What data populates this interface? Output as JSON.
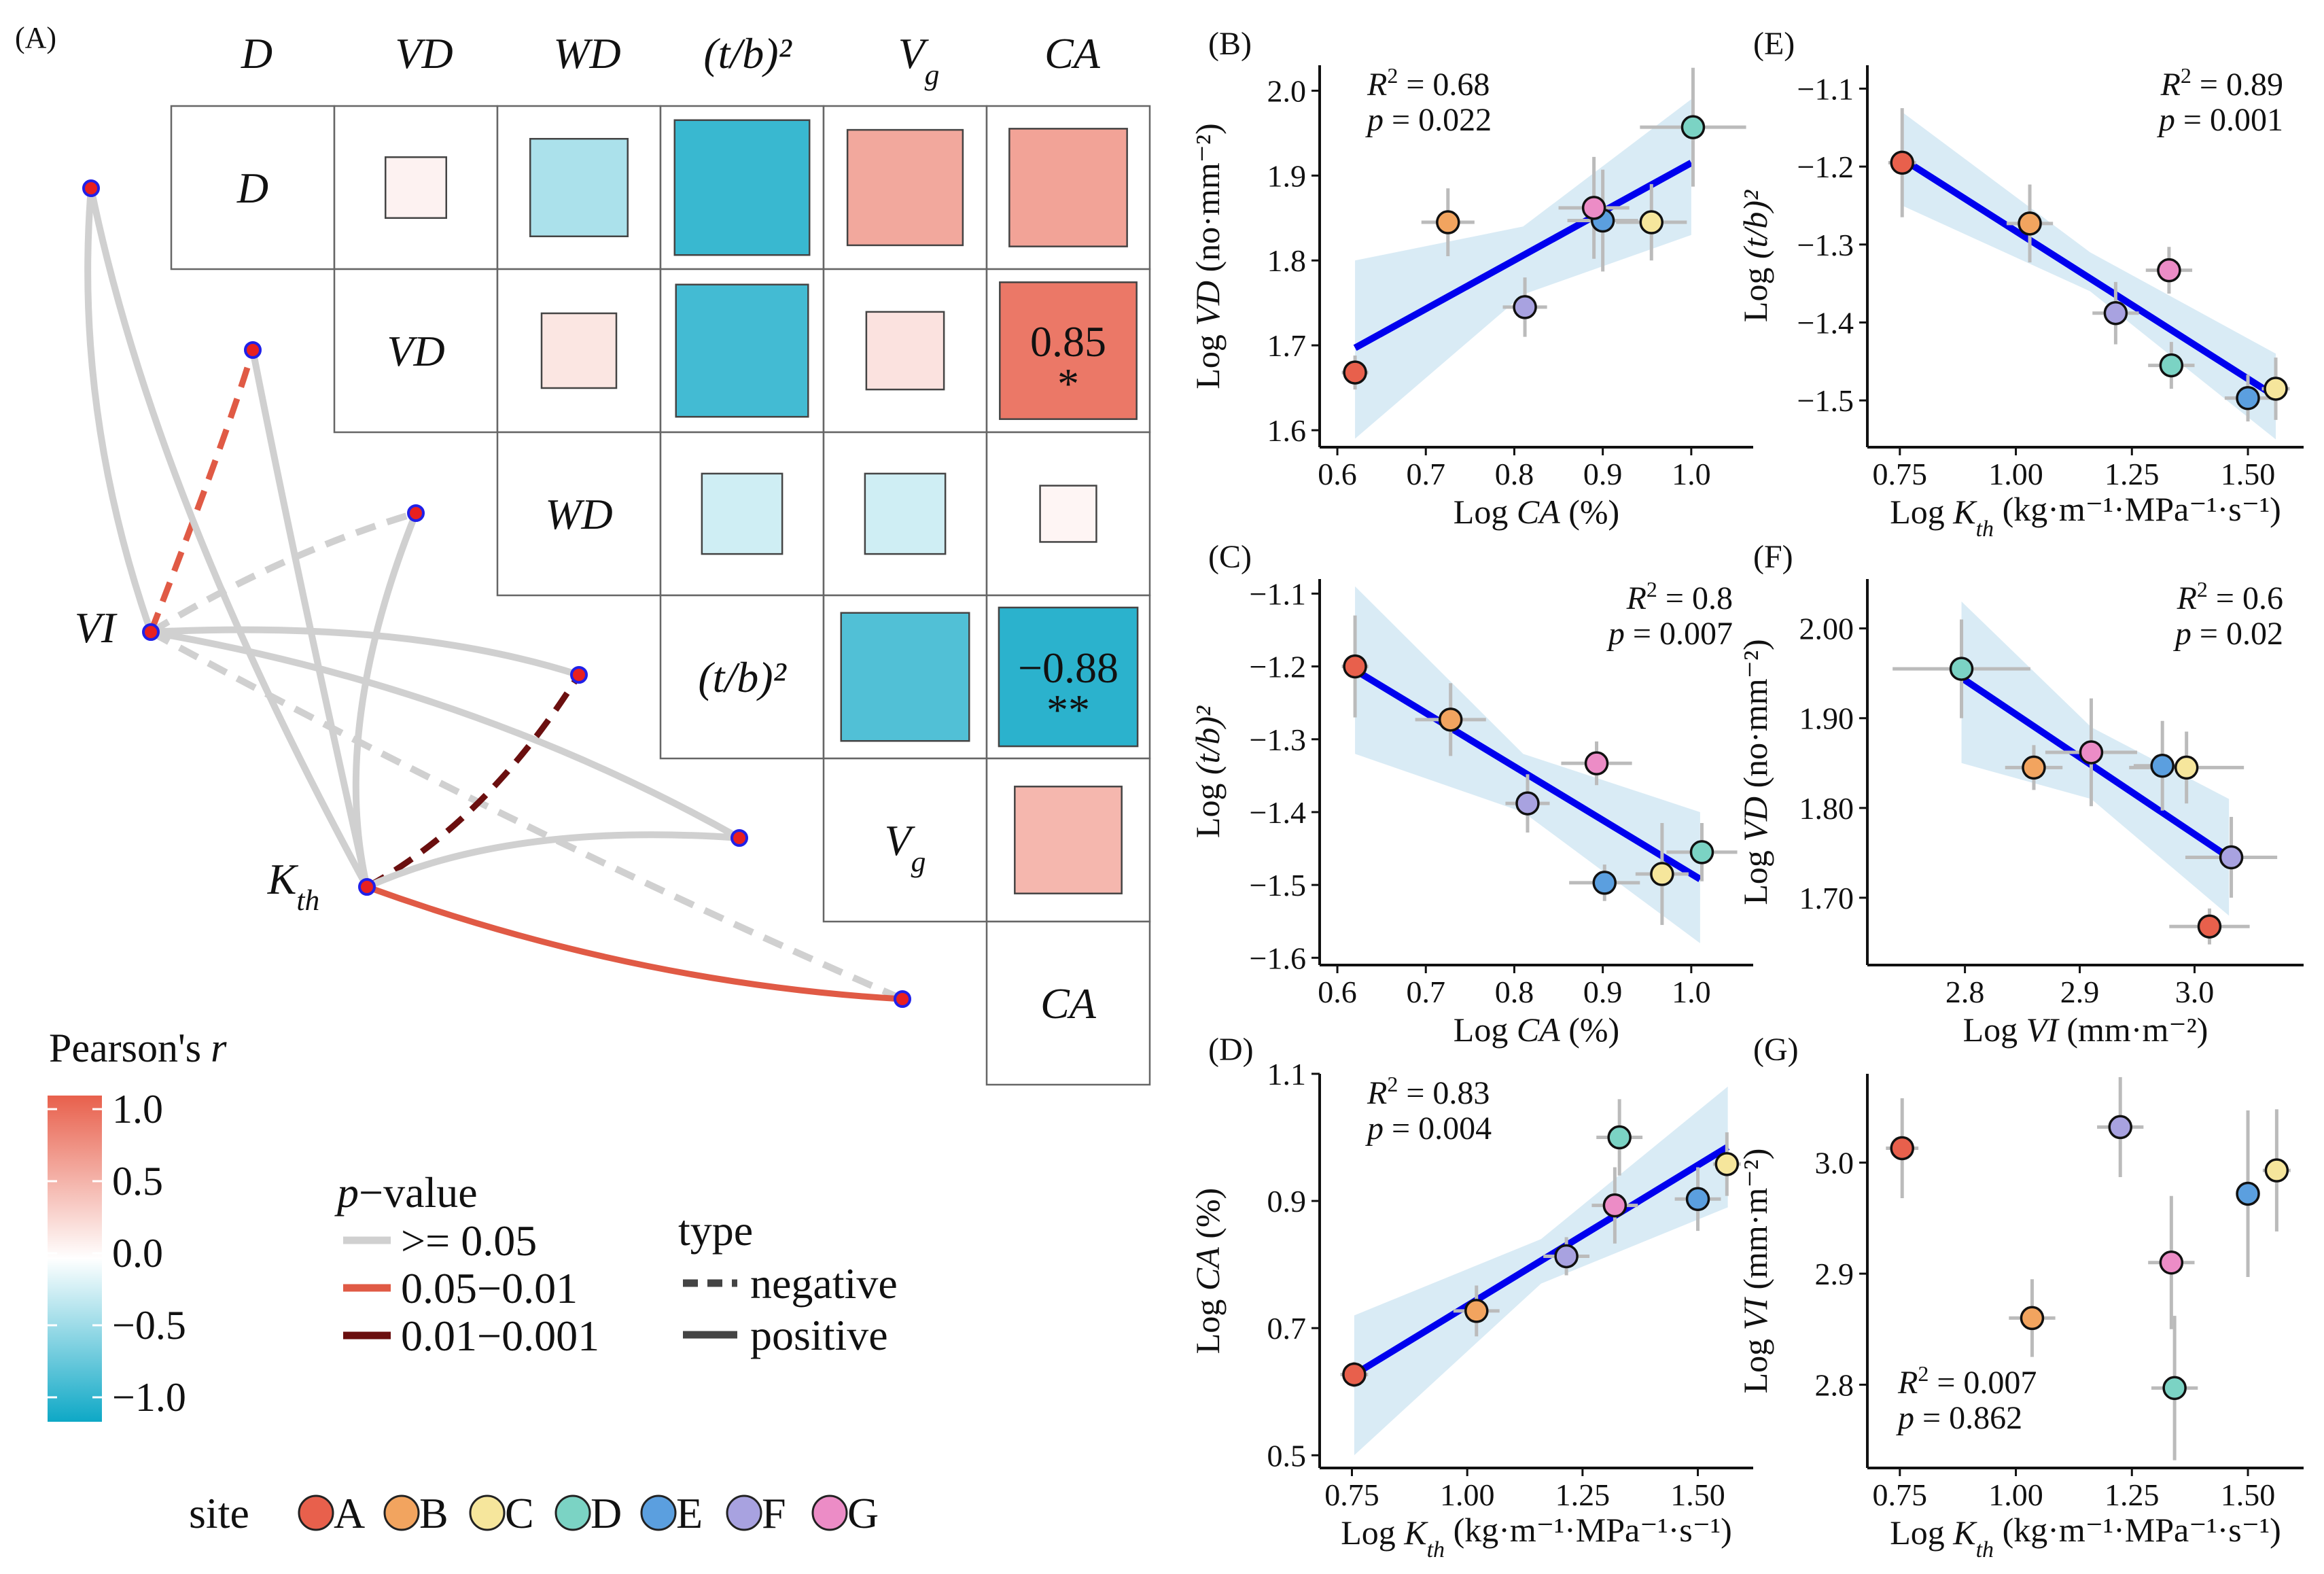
{
  "colors": {
    "pos_strong": "#E8604C",
    "neg_strong": "#0EA8C6",
    "neutral": "#FFFFFF",
    "edge_ns": "#D0D0D0",
    "edge_sig": "#E05A45",
    "edge_vsig": "#6B0F0F",
    "reg_line": "#0000EE",
    "ci_fill": "#BFDDEE",
    "node_fill": "#E82020",
    "node_stroke": "#2020E8"
  },
  "sites": [
    {
      "label": "A",
      "color": "#E8604C"
    },
    {
      "label": "B",
      "color": "#F2A45F"
    },
    {
      "label": "C",
      "color": "#F6E69C"
    },
    {
      "label": "D",
      "color": "#7BD3C4"
    },
    {
      "label": "E",
      "color": "#5B9FDF"
    },
    {
      "label": "F",
      "color": "#A8A2E0"
    },
    {
      "label": "G",
      "color": "#EC8CC6"
    }
  ],
  "panel_a": {
    "label": "(A)",
    "variables": [
      {
        "main": "D",
        "sub": ""
      },
      {
        "main": "VD",
        "sub": ""
      },
      {
        "main": "WD",
        "sub": ""
      },
      {
        "main": "(t/b)²",
        "sub": ""
      },
      {
        "main": "V",
        "sub": "g"
      },
      {
        "main": "CA",
        "sub": ""
      }
    ],
    "cells": [
      {
        "row": 0,
        "col": 1,
        "r": 0.08
      },
      {
        "row": 0,
        "col": 2,
        "r": -0.35
      },
      {
        "row": 0,
        "col": 3,
        "r": -0.82
      },
      {
        "row": 0,
        "col": 4,
        "r": 0.55
      },
      {
        "row": 0,
        "col": 5,
        "r": 0.58
      },
      {
        "row": 1,
        "col": 2,
        "r": 0.16
      },
      {
        "row": 1,
        "col": 3,
        "r": -0.78
      },
      {
        "row": 1,
        "col": 4,
        "r": 0.18
      },
      {
        "row": 1,
        "col": 5,
        "r": 0.85,
        "text": "0.85",
        "stars": "*"
      },
      {
        "row": 2,
        "col": 3,
        "r": -0.2
      },
      {
        "row": 2,
        "col": 4,
        "r": -0.2
      },
      {
        "row": 2,
        "col": 5,
        "r": 0.06
      },
      {
        "row": 3,
        "col": 4,
        "r": -0.72
      },
      {
        "row": 3,
        "col": 5,
        "r": -0.88,
        "text": "−0.88",
        "stars": "**"
      },
      {
        "row": 4,
        "col": 5,
        "r": 0.45
      }
    ],
    "network_nodes": {
      "vi": {
        "main": "VI",
        "sub": ""
      },
      "kth": {
        "main": "K",
        "sub": "th"
      }
    },
    "edges": [
      {
        "from": "vi",
        "to": 0,
        "p": "ns",
        "type": "positive"
      },
      {
        "from": "vi",
        "to": 1,
        "p": "sig",
        "type": "negative"
      },
      {
        "from": "vi",
        "to": 2,
        "p": "ns",
        "type": "negative"
      },
      {
        "from": "vi",
        "to": 3,
        "p": "ns",
        "type": "positive"
      },
      {
        "from": "vi",
        "to": 4,
        "p": "ns",
        "type": "positive"
      },
      {
        "from": "vi",
        "to": 5,
        "p": "ns",
        "type": "negative"
      },
      {
        "from": "kth",
        "to": 0,
        "p": "ns",
        "type": "positive"
      },
      {
        "from": "kth",
        "to": 1,
        "p": "ns",
        "type": "positive"
      },
      {
        "from": "kth",
        "to": 2,
        "p": "ns",
        "type": "positive"
      },
      {
        "from": "kth",
        "to": 3,
        "p": "vsig",
        "type": "negative"
      },
      {
        "from": "kth",
        "to": 4,
        "p": "ns",
        "type": "positive"
      },
      {
        "from": "kth",
        "to": 5,
        "p": "sig",
        "type": "positive"
      }
    ],
    "legend": {
      "pearson_title": "Pearson's",
      "pearson_r": "r",
      "colorbar_ticks": [
        "1.0",
        "0.5",
        "0.0",
        "−0.5",
        "−1.0"
      ],
      "p_title_p": "p",
      "p_title_rest": "−value",
      "p_items": [
        ">= 0.05",
        "0.05−0.01",
        "0.01−0.001"
      ],
      "type_title": "type",
      "type_items": [
        "negative",
        "positive"
      ],
      "site_title": "site"
    }
  },
  "chart_data": [
    {
      "panel": "(B)",
      "type": "scatter",
      "xlabel_pre": "Log ",
      "xlabel_var": "CA",
      "xlabel_sub": "",
      "xlabel_post": " (%)",
      "ylabel_pre": "Log ",
      "ylabel_var": "VD",
      "ylabel_sub": "",
      "ylabel_post": " (no·mm⁻²)",
      "xlim": [
        0.58,
        1.07
      ],
      "ylim": [
        1.58,
        2.03
      ],
      "xticks": [
        0.6,
        0.7,
        0.8,
        0.9,
        1.0
      ],
      "xtick_labels": [
        "0.6",
        "0.7",
        "0.8",
        "0.9",
        "1.0"
      ],
      "yticks": [
        1.6,
        1.7,
        1.8,
        1.9,
        2.0
      ],
      "ytick_labels": [
        "1.6",
        "1.7",
        "1.8",
        "1.9",
        "2.0"
      ],
      "stats": {
        "r2": "0.68",
        "p": "0.022",
        "position": "top-left"
      },
      "fit": {
        "x": [
          0.62,
          1.0
        ],
        "y": [
          1.697,
          1.915
        ]
      },
      "ci": {
        "x": [
          0.62,
          0.81,
          1.0
        ],
        "lo": [
          1.59,
          1.76,
          1.83
        ],
        "hi": [
          1.8,
          1.84,
          1.99
        ]
      },
      "points": [
        {
          "site": "A",
          "x": 0.62,
          "y": 1.668,
          "ex": 0.015,
          "ey": 0.02
        },
        {
          "site": "B",
          "x": 0.725,
          "y": 1.845,
          "ex": 0.03,
          "ey": 0.04
        },
        {
          "site": "C",
          "x": 0.955,
          "y": 1.845,
          "ex": 0.04,
          "ey": 0.045
        },
        {
          "site": "D",
          "x": 1.002,
          "y": 1.957,
          "ex": 0.06,
          "ey": 0.07
        },
        {
          "site": "E",
          "x": 0.9,
          "y": 1.847,
          "ex": 0.04,
          "ey": 0.06
        },
        {
          "site": "F",
          "x": 0.812,
          "y": 1.745,
          "ex": 0.025,
          "ey": 0.035
        },
        {
          "site": "G",
          "x": 0.89,
          "y": 1.862,
          "ex": 0.04,
          "ey": 0.06
        }
      ]
    },
    {
      "panel": "(C)",
      "type": "scatter",
      "xlabel_pre": "Log ",
      "xlabel_var": "CA",
      "xlabel_sub": "",
      "xlabel_post": " (%)",
      "ylabel_pre": "Log ",
      "ylabel_var": "(t/b)²",
      "ylabel_sub": "",
      "ylabel_post": "",
      "xlim": [
        0.58,
        1.07
      ],
      "ylim": [
        -1.61,
        -1.08
      ],
      "xticks": [
        0.6,
        0.7,
        0.8,
        0.9,
        1.0
      ],
      "xtick_labels": [
        "0.6",
        "0.7",
        "0.8",
        "0.9",
        "1.0"
      ],
      "yticks": [
        -1.6,
        -1.5,
        -1.4,
        -1.3,
        -1.2,
        -1.1
      ],
      "ytick_labels": [
        "−1.6",
        "−1.5",
        "−1.4",
        "−1.3",
        "−1.2",
        "−1.1"
      ],
      "stats": {
        "r2": "0.8",
        "p": "0.007",
        "position": "top-right"
      },
      "fit": {
        "x": [
          0.62,
          1.01
        ],
        "y": [
          -1.205,
          -1.492
        ]
      },
      "ci": {
        "x": [
          0.62,
          0.81,
          1.01
        ],
        "lo": [
          -1.32,
          -1.4,
          -1.58
        ],
        "hi": [
          -1.09,
          -1.32,
          -1.4
        ]
      },
      "points": [
        {
          "site": "A",
          "x": 0.62,
          "y": -1.2,
          "ex": 0.015,
          "ey": 0.07
        },
        {
          "site": "B",
          "x": 0.728,
          "y": -1.273,
          "ex": 0.04,
          "ey": 0.05
        },
        {
          "site": "C",
          "x": 0.967,
          "y": -1.485,
          "ex": 0.03,
          "ey": 0.07
        },
        {
          "site": "D",
          "x": 1.012,
          "y": -1.455,
          "ex": 0.04,
          "ey": 0.04
        },
        {
          "site": "E",
          "x": 0.902,
          "y": -1.497,
          "ex": 0.04,
          "ey": 0.025
        },
        {
          "site": "F",
          "x": 0.815,
          "y": -1.388,
          "ex": 0.025,
          "ey": 0.04
        },
        {
          "site": "G",
          "x": 0.893,
          "y": -1.333,
          "ex": 0.04,
          "ey": 0.03
        }
      ]
    },
    {
      "panel": "(D)",
      "type": "scatter",
      "xlabel_pre": "Log ",
      "xlabel_var": "K",
      "xlabel_sub": "th",
      "xlabel_post": " (kg·m⁻¹·MPa⁻¹·s⁻¹)",
      "ylabel_pre": "Log ",
      "ylabel_var": "CA",
      "ylabel_sub": "",
      "ylabel_post": " (%)",
      "xlim": [
        0.68,
        1.62
      ],
      "ylim": [
        0.48,
        1.1
      ],
      "xticks": [
        0.75,
        1.0,
        1.25,
        1.5
      ],
      "xtick_labels": [
        "0.75",
        "1.00",
        "1.25",
        "1.50"
      ],
      "yticks": [
        0.5,
        0.7,
        0.9,
        1.1
      ],
      "ytick_labels": [
        "0.5",
        "0.7",
        "0.9",
        "1.1"
      ],
      "stats": {
        "r2": "0.83",
        "p": "0.004",
        "position": "top-left"
      },
      "fit": {
        "x": [
          0.755,
          1.565
        ],
        "y": [
          0.627,
          0.985
        ]
      },
      "ci": {
        "x": [
          0.755,
          1.16,
          1.565
        ],
        "lo": [
          0.5,
          0.77,
          0.89
        ],
        "hi": [
          0.72,
          0.84,
          1.08
        ]
      },
      "points": [
        {
          "site": "A",
          "x": 0.755,
          "y": 0.627,
          "ex": 0.03,
          "ey": 0.02
        },
        {
          "site": "B",
          "x": 1.02,
          "y": 0.727,
          "ex": 0.05,
          "ey": 0.04
        },
        {
          "site": "C",
          "x": 1.563,
          "y": 0.958,
          "ex": 0.03,
          "ey": 0.05
        },
        {
          "site": "D",
          "x": 1.33,
          "y": 1.0,
          "ex": 0.05,
          "ey": 0.06
        },
        {
          "site": "E",
          "x": 1.5,
          "y": 0.903,
          "ex": 0.05,
          "ey": 0.05
        },
        {
          "site": "F",
          "x": 1.215,
          "y": 0.813,
          "ex": 0.05,
          "ey": 0.03
        },
        {
          "site": "G",
          "x": 1.32,
          "y": 0.893,
          "ex": 0.05,
          "ey": 0.06
        }
      ]
    },
    {
      "panel": "(E)",
      "type": "scatter",
      "xlabel_pre": "Log ",
      "xlabel_var": "K",
      "xlabel_sub": "th",
      "xlabel_post": " (kg·m⁻¹·MPa⁻¹·s⁻¹)",
      "ylabel_pre": "Log ",
      "ylabel_var": "(t/b)²",
      "ylabel_sub": "",
      "ylabel_post": "",
      "xlim": [
        0.68,
        1.62
      ],
      "ylim": [
        -1.56,
        -1.07
      ],
      "xticks": [
        0.75,
        1.0,
        1.25,
        1.5
      ],
      "xtick_labels": [
        "0.75",
        "1.00",
        "1.25",
        "1.50"
      ],
      "yticks": [
        -1.5,
        -1.4,
        -1.3,
        -1.2,
        -1.1
      ],
      "ytick_labels": [
        "−1.5",
        "−1.4",
        "−1.3",
        "−1.2",
        "−1.1"
      ],
      "stats": {
        "r2": "0.89",
        "p": "0.001",
        "position": "top-right"
      },
      "fit": {
        "x": [
          0.755,
          1.56
        ],
        "y": [
          -1.19,
          -1.495
        ]
      },
      "ci": {
        "x": [
          0.755,
          1.16,
          1.56
        ],
        "lo": [
          -1.25,
          -1.36,
          -1.55
        ],
        "hi": [
          -1.13,
          -1.31,
          -1.44
        ]
      },
      "points": [
        {
          "site": "A",
          "x": 0.755,
          "y": -1.195,
          "ex": 0.03,
          "ey": 0.07
        },
        {
          "site": "B",
          "x": 1.03,
          "y": -1.273,
          "ex": 0.05,
          "ey": 0.05
        },
        {
          "site": "C",
          "x": 1.56,
          "y": -1.485,
          "ex": 0.03,
          "ey": 0.04
        },
        {
          "site": "D",
          "x": 1.335,
          "y": -1.455,
          "ex": 0.05,
          "ey": 0.03
        },
        {
          "site": "E",
          "x": 1.5,
          "y": -1.497,
          "ex": 0.05,
          "ey": 0.03
        },
        {
          "site": "F",
          "x": 1.215,
          "y": -1.388,
          "ex": 0.05,
          "ey": 0.04
        },
        {
          "site": "G",
          "x": 1.33,
          "y": -1.333,
          "ex": 0.05,
          "ey": 0.03
        }
      ]
    },
    {
      "panel": "(F)",
      "type": "scatter",
      "xlabel_pre": "Log ",
      "xlabel_var": "VI",
      "xlabel_sub": "",
      "xlabel_post": " (mm·m⁻²)",
      "ylabel_pre": "Log ",
      "ylabel_var": "VD",
      "ylabel_sub": "",
      "ylabel_post": " (no·mm⁻²)",
      "xlim": [
        2.715,
        3.095
      ],
      "ylim": [
        1.625,
        2.055
      ],
      "xticks": [
        2.8,
        2.9,
        3.0
      ],
      "xtick_labels": [
        "2.8",
        "2.9",
        "3.0"
      ],
      "yticks": [
        1.7,
        1.8,
        1.9,
        2.0
      ],
      "ytick_labels": [
        "1.70",
        "1.80",
        "1.90",
        "2.00"
      ],
      "stats": {
        "r2": "0.6",
        "p": "0.02",
        "position": "top-right"
      },
      "fit": {
        "x": [
          2.797,
          3.03
        ],
        "y": [
          1.945,
          1.745
        ]
      },
      "ci": {
        "x": [
          2.797,
          2.91,
          3.03
        ],
        "lo": [
          1.85,
          1.81,
          1.68
        ],
        "hi": [
          2.03,
          1.89,
          1.81
        ]
      },
      "points": [
        {
          "site": "A",
          "x": 3.013,
          "y": 1.668,
          "ex": 0.035,
          "ey": 0.02
        },
        {
          "site": "B",
          "x": 2.86,
          "y": 1.845,
          "ex": 0.025,
          "ey": 0.025
        },
        {
          "site": "C",
          "x": 2.993,
          "y": 1.845,
          "ex": 0.05,
          "ey": 0.04
        },
        {
          "site": "D",
          "x": 2.797,
          "y": 1.955,
          "ex": 0.06,
          "ey": 0.055
        },
        {
          "site": "E",
          "x": 2.972,
          "y": 1.847,
          "ex": 0.025,
          "ey": 0.05
        },
        {
          "site": "F",
          "x": 3.032,
          "y": 1.745,
          "ex": 0.04,
          "ey": 0.045
        },
        {
          "site": "G",
          "x": 2.91,
          "y": 1.862,
          "ex": 0.04,
          "ey": 0.06
        }
      ]
    },
    {
      "panel": "(G)",
      "type": "scatter",
      "xlabel_pre": "Log ",
      "xlabel_var": "K",
      "xlabel_sub": "th",
      "xlabel_post": " (kg·m⁻¹·MPa⁻¹·s⁻¹)",
      "ylabel_pre": "Log ",
      "ylabel_var": "VI",
      "ylabel_sub": "",
      "ylabel_post": " (mm·m⁻²)",
      "xlim": [
        0.68,
        1.62
      ],
      "ylim": [
        2.725,
        3.08
      ],
      "xticks": [
        0.75,
        1.0,
        1.25,
        1.5
      ],
      "xtick_labels": [
        "0.75",
        "1.00",
        "1.25",
        "1.50"
      ],
      "yticks": [
        2.8,
        2.9,
        3.0
      ],
      "ytick_labels": [
        "2.8",
        "2.9",
        "3.0"
      ],
      "stats": {
        "r2": "0.007",
        "p": "0.862",
        "position": "bottom-left"
      },
      "fit": null,
      "ci": null,
      "points": [
        {
          "site": "A",
          "x": 0.755,
          "y": 3.013,
          "ex": 0.035,
          "ey": 0.045
        },
        {
          "site": "B",
          "x": 1.035,
          "y": 2.86,
          "ex": 0.05,
          "ey": 0.035
        },
        {
          "site": "C",
          "x": 1.562,
          "y": 2.993,
          "ex": 0.03,
          "ey": 0.055
        },
        {
          "site": "D",
          "x": 1.342,
          "y": 2.797,
          "ex": 0.05,
          "ey": 0.065
        },
        {
          "site": "E",
          "x": 1.5,
          "y": 2.972,
          "ex": 0.025,
          "ey": 0.075
        },
        {
          "site": "F",
          "x": 1.225,
          "y": 3.032,
          "ex": 0.05,
          "ey": 0.045
        },
        {
          "site": "G",
          "x": 1.335,
          "y": 2.91,
          "ex": 0.05,
          "ey": 0.06
        }
      ]
    }
  ]
}
